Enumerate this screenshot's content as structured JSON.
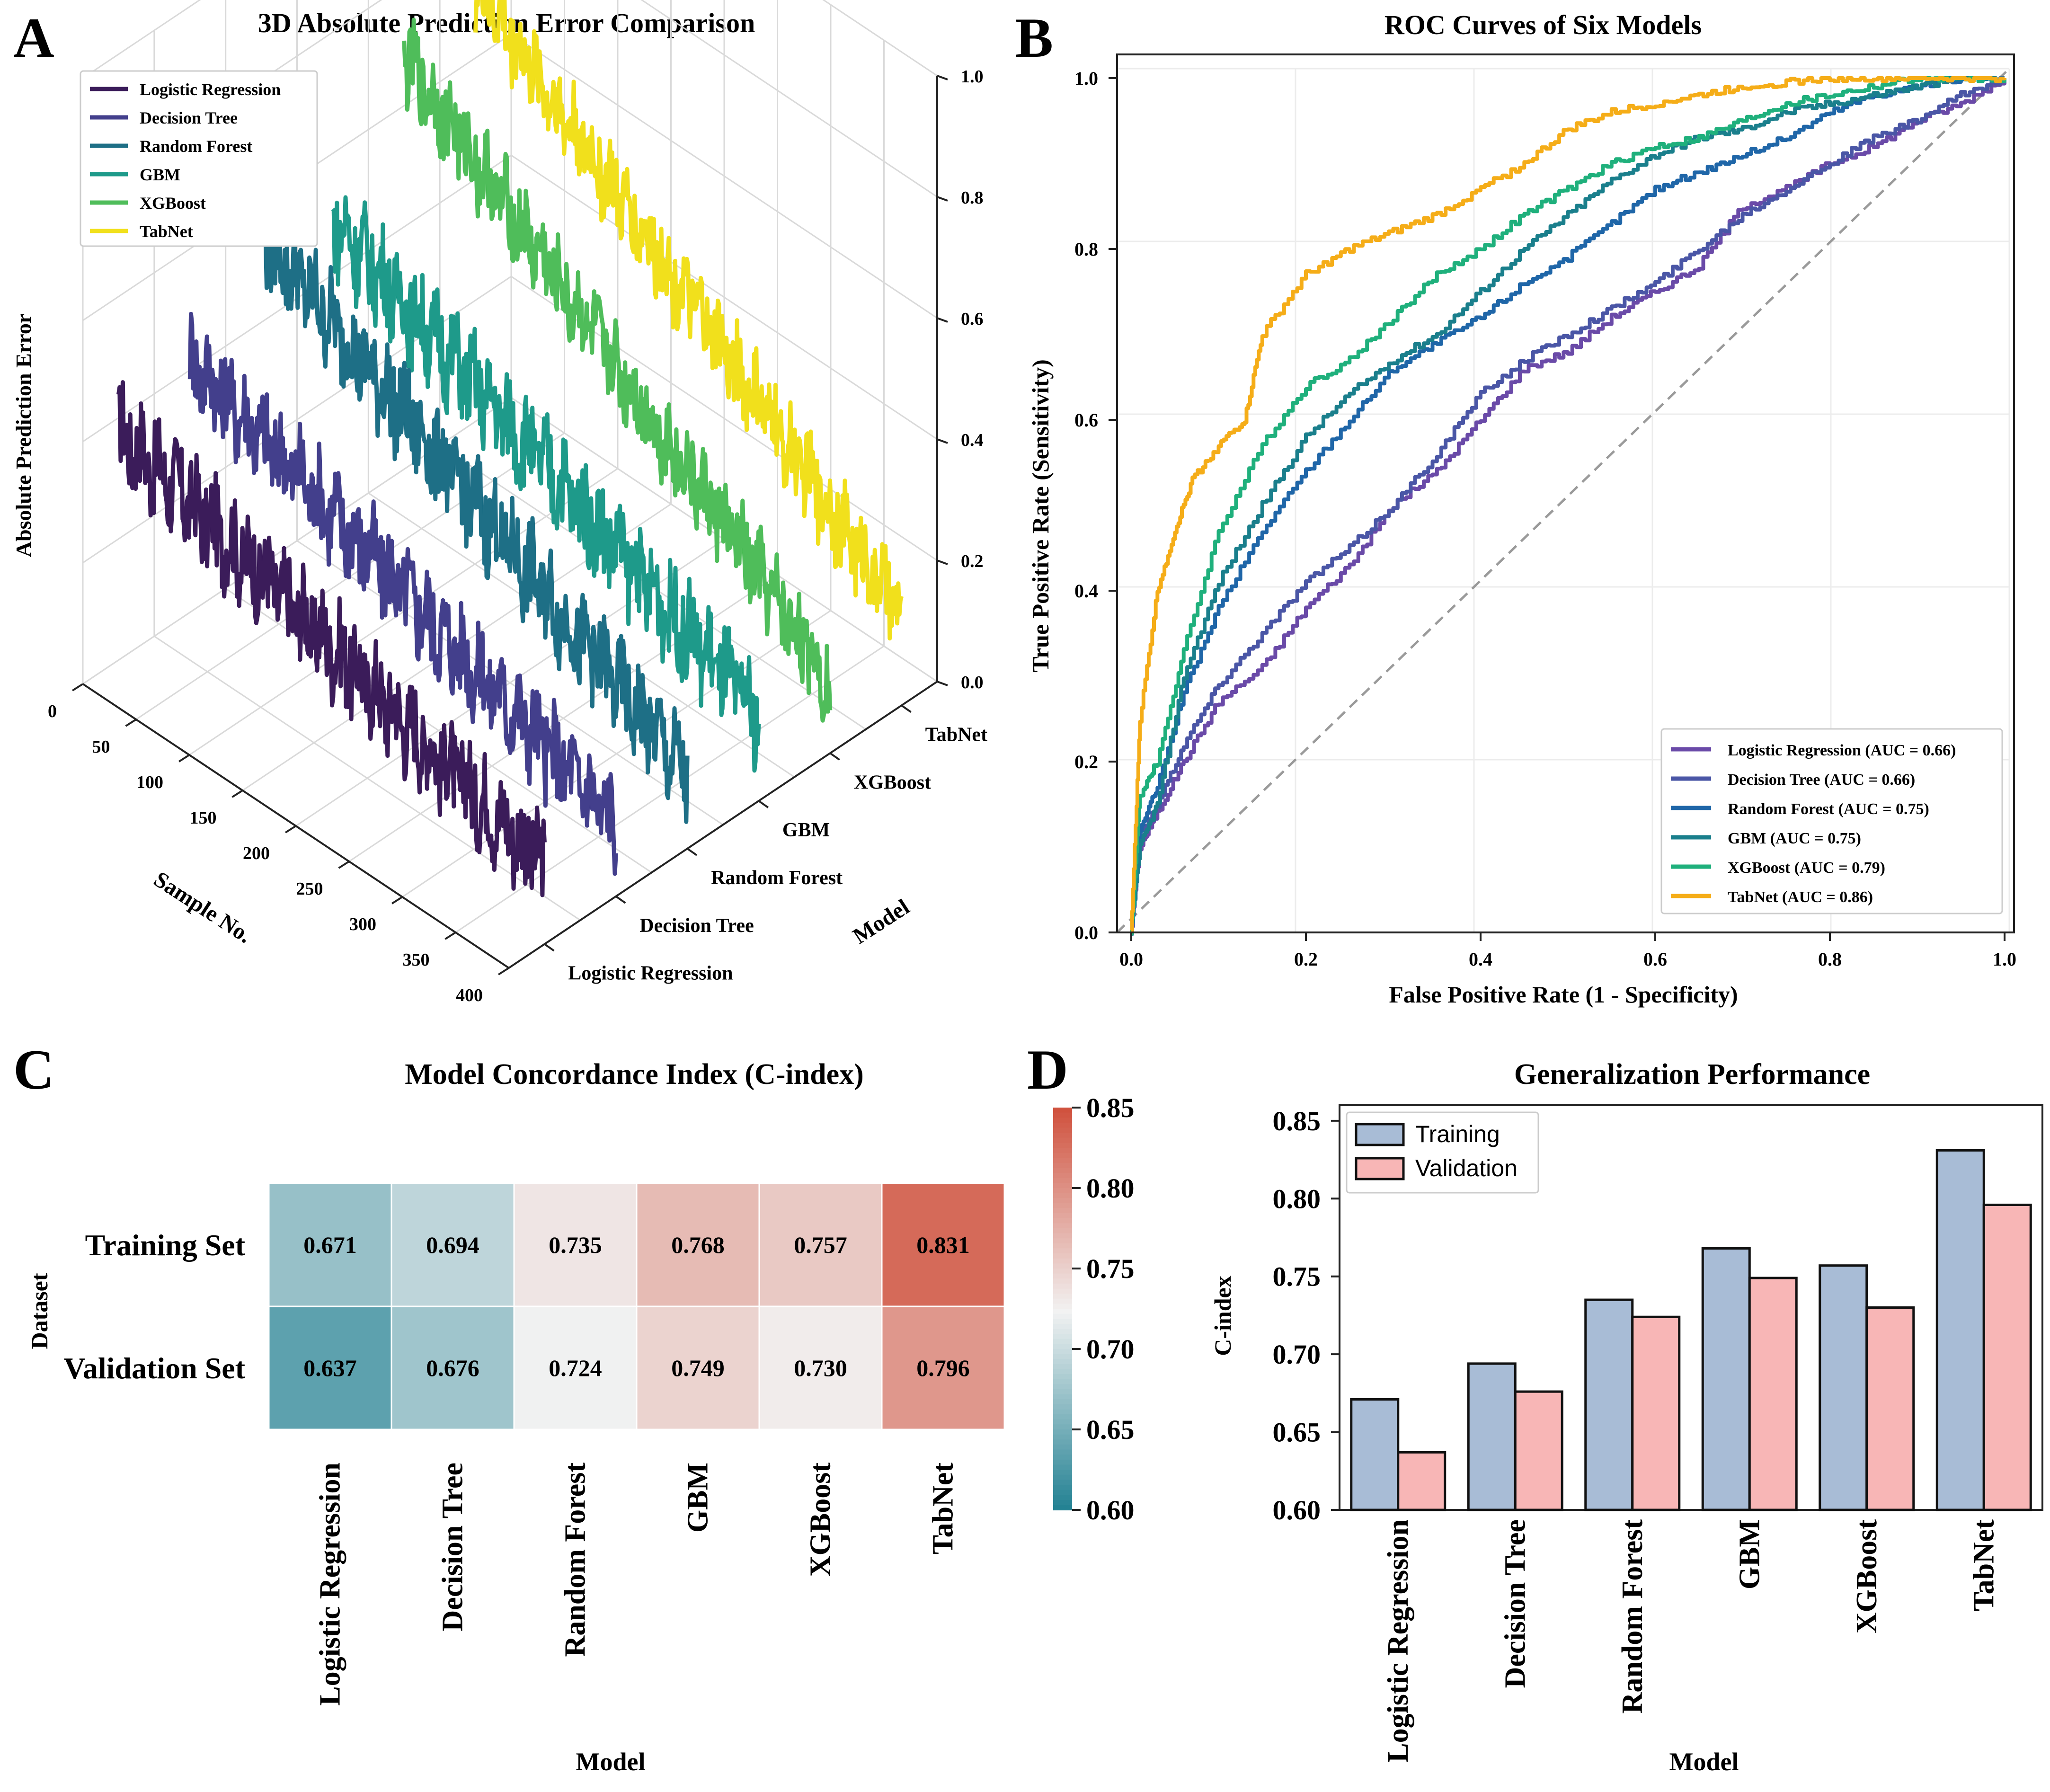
{
  "panel_letters": {
    "a": "A",
    "b": "B",
    "c": "C",
    "d": "D"
  },
  "chart_data": [
    {
      "panel": "A",
      "type": "line",
      "title": "3D Absolute Prediction Error Comparison",
      "xlabel": "Sample No.",
      "ylabel": "Model",
      "zlabel": "Absolute Prediction Error",
      "x_ticks": [
        "0",
        "50",
        "100",
        "150",
        "200",
        "250",
        "300",
        "350",
        "400"
      ],
      "z_ticks": [
        "0.0",
        "0.2",
        "0.4",
        "0.6",
        "0.8",
        "1.0"
      ],
      "zlim": [
        0,
        1
      ],
      "xlim": [
        0,
        400
      ],
      "legend_position": "top-left",
      "series": [
        {
          "name": "Logistic Regression",
          "color": "#3b1c5a",
          "start": 0.38,
          "end": 0.13,
          "noise": 0.025
        },
        {
          "name": "Decision Tree",
          "color": "#433f8c",
          "start": 0.42,
          "end": 0.12,
          "noise": 0.025
        },
        {
          "name": "Random Forest",
          "color": "#1e6f86",
          "start": 0.55,
          "end": 0.12,
          "noise": 0.025
        },
        {
          "name": "GBM",
          "color": "#1e9a8a",
          "start": 0.49,
          "end": 0.14,
          "noise": 0.025
        },
        {
          "name": "XGBoost",
          "color": "#4fbd5a",
          "start": 0.68,
          "end": 0.12,
          "noise": 0.022
        },
        {
          "name": "TabNet",
          "color": "#f1e01c",
          "start": 0.72,
          "end": 0.15,
          "noise": 0.022
        }
      ]
    },
    {
      "panel": "B",
      "type": "line",
      "title": "ROC Curves of Six Models",
      "xlabel": "False Positive Rate (1 - Specificity)",
      "ylabel": "True Positive Rate (Sensitivity)",
      "xlim": [
        0,
        1
      ],
      "ylim": [
        0,
        1
      ],
      "x_ticks": [
        "0.0",
        "0.2",
        "0.4",
        "0.6",
        "0.8",
        "1.0"
      ],
      "y_ticks": [
        "0.0",
        "0.2",
        "0.4",
        "0.6",
        "0.8",
        "1.0"
      ],
      "legend_position": "bottom-right",
      "grid": true,
      "diagonal": "dashed",
      "series": [
        {
          "name": "Logistic Regression (AUC = 0.66)",
          "color": "#6a4aa8",
          "x": [
            0,
            0.01,
            0.03,
            0.06,
            0.1,
            0.15,
            0.2,
            0.25,
            0.3,
            0.35,
            0.4,
            0.45,
            0.5,
            0.55,
            0.6,
            0.65,
            0.7,
            0.75,
            0.8,
            0.85,
            0.9,
            0.95,
            1.0
          ],
          "y": [
            0,
            0.1,
            0.14,
            0.2,
            0.27,
            0.31,
            0.38,
            0.43,
            0.5,
            0.54,
            0.6,
            0.66,
            0.68,
            0.72,
            0.75,
            0.78,
            0.85,
            0.87,
            0.9,
            0.92,
            0.95,
            0.97,
            1.0
          ]
        },
        {
          "name": "Decision Tree (AUC = 0.66)",
          "color": "#4a56a6",
          "x": [
            0,
            0.01,
            0.03,
            0.06,
            0.1,
            0.15,
            0.2,
            0.25,
            0.3,
            0.35,
            0.4,
            0.45,
            0.5,
            0.55,
            0.6,
            0.65,
            0.7,
            0.75,
            0.8,
            0.85,
            0.9,
            0.95,
            1.0
          ],
          "y": [
            0,
            0.11,
            0.15,
            0.22,
            0.29,
            0.35,
            0.41,
            0.45,
            0.5,
            0.56,
            0.63,
            0.67,
            0.7,
            0.73,
            0.76,
            0.8,
            0.84,
            0.87,
            0.9,
            0.93,
            0.95,
            0.98,
            1.0
          ]
        },
        {
          "name": "Random Forest (AUC = 0.75)",
          "color": "#1f66a8",
          "x": [
            0,
            0.01,
            0.03,
            0.06,
            0.1,
            0.15,
            0.2,
            0.25,
            0.3,
            0.35,
            0.4,
            0.45,
            0.5,
            0.55,
            0.6,
            0.65,
            0.7,
            0.75,
            0.8,
            0.85,
            0.9,
            0.95,
            1.0
          ],
          "y": [
            0,
            0.12,
            0.17,
            0.28,
            0.38,
            0.47,
            0.54,
            0.6,
            0.66,
            0.69,
            0.72,
            0.76,
            0.79,
            0.83,
            0.87,
            0.89,
            0.91,
            0.93,
            0.96,
            0.98,
            0.99,
            1.0,
            1.0
          ]
        },
        {
          "name": "GBM (AUC = 0.75)",
          "color": "#1a7f8c",
          "x": [
            0,
            0.01,
            0.03,
            0.06,
            0.1,
            0.15,
            0.2,
            0.25,
            0.3,
            0.35,
            0.4,
            0.45,
            0.5,
            0.55,
            0.6,
            0.65,
            0.7,
            0.75,
            0.8,
            0.85,
            0.9,
            0.95,
            1.0
          ],
          "y": [
            0,
            0.1,
            0.15,
            0.3,
            0.41,
            0.5,
            0.58,
            0.63,
            0.67,
            0.7,
            0.75,
            0.8,
            0.84,
            0.88,
            0.91,
            0.93,
            0.94,
            0.96,
            0.97,
            0.98,
            0.99,
            1.0,
            1.0
          ]
        },
        {
          "name": "XGBoost (AUC = 0.79)",
          "color": "#1fb07c",
          "x": [
            0,
            0.01,
            0.03,
            0.06,
            0.1,
            0.15,
            0.2,
            0.25,
            0.3,
            0.35,
            0.4,
            0.45,
            0.5,
            0.55,
            0.6,
            0.65,
            0.7,
            0.75,
            0.8,
            0.85,
            0.9,
            0.95,
            1.0
          ],
          "y": [
            0,
            0.16,
            0.2,
            0.33,
            0.47,
            0.57,
            0.64,
            0.67,
            0.72,
            0.77,
            0.8,
            0.84,
            0.87,
            0.9,
            0.92,
            0.93,
            0.95,
            0.97,
            0.98,
            0.99,
            1.0,
            1.0,
            1.0
          ]
        },
        {
          "name": "TabNet (AUC = 0.86)",
          "color": "#f5ad18",
          "x": [
            0,
            0.01,
            0.03,
            0.05,
            0.07,
            0.1,
            0.13,
            0.15,
            0.2,
            0.25,
            0.3,
            0.35,
            0.4,
            0.45,
            0.5,
            0.55,
            0.6,
            0.65,
            0.7,
            0.75,
            0.8,
            0.85,
            0.9,
            0.95,
            1.0
          ],
          "y": [
            0,
            0.25,
            0.4,
            0.47,
            0.53,
            0.57,
            0.6,
            0.7,
            0.77,
            0.8,
            0.82,
            0.84,
            0.87,
            0.9,
            0.94,
            0.96,
            0.97,
            0.98,
            0.99,
            0.995,
            1.0,
            1.0,
            1.0,
            1.0,
            1.0
          ]
        }
      ]
    },
    {
      "panel": "C",
      "type": "heatmap",
      "title": "Model Concordance Index (C-index)",
      "xlabel": "Model",
      "ylabel": "Dataset",
      "x_categories": [
        "Logistic Regression",
        "Decision Tree",
        "Random Forest",
        "GBM",
        "XGBoost",
        "TabNet"
      ],
      "y_categories": [
        "Training Set",
        "Validation Set"
      ],
      "values": [
        [
          0.671,
          0.694,
          0.735,
          0.768,
          0.757,
          0.831
        ],
        [
          0.637,
          0.676,
          0.724,
          0.749,
          0.73,
          0.796
        ]
      ],
      "labels": [
        [
          "0.671",
          "0.694",
          "0.735",
          "0.768",
          "0.757",
          "0.831"
        ],
        [
          "0.637",
          "0.676",
          "0.724",
          "0.749",
          "0.730",
          "0.796"
        ]
      ],
      "colorbar_ticks": [
        "0.60",
        "0.65",
        "0.70",
        "0.75",
        "0.80",
        "0.85"
      ],
      "vmin": 0.6,
      "vmax": 0.85,
      "cmap": {
        "low": "#1f7f91",
        "mid": "#f2f2f2",
        "high": "#d0523e"
      }
    },
    {
      "panel": "D",
      "type": "bar",
      "title": "Generalization Performance",
      "xlabel": "Model",
      "ylabel": "C-index",
      "categories": [
        "Logistic Regression",
        "Decision Tree",
        "Random Forest",
        "GBM",
        "XGBoost",
        "TabNet"
      ],
      "series": [
        {
          "name": "Training",
          "color": "#a8bcd6",
          "values": [
            0.671,
            0.694,
            0.735,
            0.768,
            0.757,
            0.831
          ]
        },
        {
          "name": "Validation",
          "color": "#f8b6b6",
          "values": [
            0.637,
            0.676,
            0.724,
            0.749,
            0.73,
            0.796
          ]
        }
      ],
      "ylim": [
        0.6,
        0.86
      ],
      "y_ticks": [
        "0.60",
        "0.65",
        "0.70",
        "0.75",
        "0.80",
        "0.85"
      ],
      "legend_position": "top-left"
    }
  ]
}
